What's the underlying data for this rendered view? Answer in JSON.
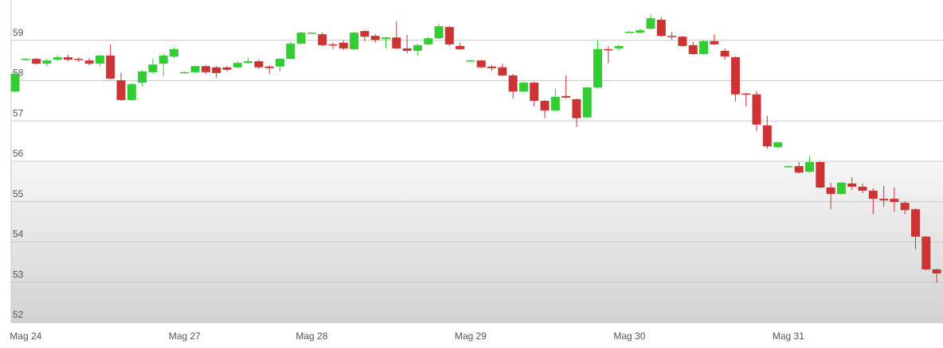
{
  "chart_data": {
    "type": "candlestick",
    "categories": [
      null,
      "Mag 24",
      null,
      null,
      null,
      null,
      null,
      null,
      null,
      null,
      null,
      null,
      null,
      null,
      null,
      null,
      "Mag 27",
      null,
      null,
      null,
      null,
      null,
      null,
      null,
      null,
      null,
      null,
      null,
      "Mag 28",
      null,
      null,
      null,
      null,
      null,
      null,
      null,
      null,
      null,
      null,
      null,
      null,
      null,
      null,
      "Mag 29",
      null,
      null,
      null,
      null,
      null,
      null,
      null,
      null,
      null,
      null,
      null,
      null,
      null,
      null,
      "Mag 30",
      null,
      null,
      null,
      null,
      null,
      null,
      null,
      null,
      null,
      null,
      null,
      null,
      null,
      null,
      "Mag 31",
      null,
      null,
      null,
      null,
      null,
      null,
      null,
      null,
      null,
      null,
      null,
      null,
      null,
      null
    ],
    "open": [
      57.73,
      58.54,
      58.54,
      58.42,
      58.52,
      58.58,
      58.54,
      58.5,
      58.42,
      58.62,
      58.01,
      57.52,
      57.95,
      58.21,
      58.42,
      58.6,
      58.21,
      58.21,
      58.36,
      58.33,
      58.33,
      58.33,
      58.44,
      58.48,
      58.35,
      58.35,
      58.54,
      58.92,
      59.19,
      59.15,
      58.9,
      58.94,
      58.78,
      59.23,
      59.11,
      59.03,
      59.07,
      58.8,
      58.74,
      58.9,
      59.05,
      59.33,
      58.86,
      58.5,
      58.5,
      58.35,
      58.33,
      58.13,
      57.73,
      57.95,
      57.5,
      57.26,
      57.62,
      57.54,
      57.09,
      57.83,
      58.78,
      58.8,
      59.21,
      59.19,
      59.29,
      59.51,
      59.11,
      59.09,
      58.88,
      58.66,
      58.98,
      58.74,
      58.58,
      57.68,
      57.66,
      56.89,
      56.35,
      55.88,
      55.88,
      55.74,
      55.98,
      55.35,
      55.19,
      55.45,
      55.37,
      55.27,
      55.07,
      55.07,
      54.97,
      54.81,
      54.13,
      53.32
    ],
    "high": [
      58.23,
      58.56,
      58.56,
      58.54,
      58.64,
      58.64,
      58.58,
      58.56,
      58.64,
      58.9,
      58.2,
      57.95,
      58.27,
      58.55,
      58.66,
      58.82,
      58.23,
      58.38,
      58.38,
      58.36,
      58.36,
      58.48,
      58.58,
      58.52,
      58.38,
      58.56,
      58.96,
      59.21,
      59.21,
      59.19,
      58.94,
      59.0,
      59.21,
      59.25,
      59.15,
      59.09,
      59.47,
      59.13,
      58.92,
      59.09,
      59.41,
      59.35,
      58.94,
      58.52,
      58.52,
      58.38,
      58.42,
      58.17,
      57.97,
      57.97,
      57.52,
      57.8,
      58.13,
      57.56,
      57.85,
      59.0,
      58.85,
      58.88,
      59.23,
      59.29,
      59.63,
      59.57,
      59.21,
      59.11,
      58.96,
      59.0,
      59.15,
      58.8,
      58.6,
      57.7,
      57.74,
      57.13,
      56.49,
      55.9,
      55.98,
      56.13,
      56.0,
      55.47,
      55.49,
      55.6,
      55.45,
      55.33,
      55.39,
      55.35,
      55.01,
      54.83,
      54.15,
      53.34
    ],
    "low": [
      57.71,
      58.52,
      58.4,
      58.36,
      58.5,
      58.48,
      58.46,
      58.38,
      58.36,
      58.03,
      57.5,
      57.5,
      57.85,
      58.17,
      58.1,
      58.56,
      58.19,
      58.19,
      58.17,
      58.07,
      58.23,
      58.31,
      58.42,
      58.29,
      58.17,
      58.23,
      58.52,
      58.9,
      59.17,
      58.86,
      58.78,
      58.76,
      58.76,
      58.98,
      58.94,
      58.8,
      58.78,
      58.68,
      58.62,
      58.88,
      59.03,
      58.86,
      58.76,
      58.48,
      58.31,
      58.25,
      58.11,
      57.56,
      57.71,
      57.36,
      57.07,
      57.24,
      57.56,
      56.85,
      57.07,
      57.8,
      58.43,
      58.74,
      59.19,
      59.17,
      59.27,
      59.09,
      59.01,
      58.84,
      58.64,
      58.64,
      58.88,
      58.52,
      57.48,
      57.36,
      56.75,
      56.31,
      56.33,
      55.86,
      55.7,
      55.72,
      55.33,
      54.81,
      55.17,
      55.29,
      55.21,
      54.69,
      54.87,
      54.75,
      54.69,
      53.82,
      53.3,
      52.99
    ],
    "close": [
      58.17,
      58.54,
      58.42,
      58.5,
      58.58,
      58.52,
      58.52,
      58.42,
      58.62,
      58.05,
      57.52,
      57.91,
      58.23,
      58.4,
      58.62,
      58.78,
      58.21,
      58.36,
      58.21,
      58.19,
      58.27,
      58.44,
      58.48,
      58.33,
      58.31,
      58.54,
      58.92,
      59.19,
      59.19,
      58.88,
      58.88,
      58.8,
      59.19,
      59.09,
      59.01,
      59.07,
      58.8,
      58.74,
      58.88,
      59.05,
      59.35,
      58.9,
      58.78,
      58.5,
      58.33,
      58.31,
      58.13,
      57.73,
      57.95,
      57.5,
      57.26,
      57.6,
      57.58,
      57.07,
      57.83,
      58.78,
      58.76,
      58.86,
      59.21,
      59.25,
      59.55,
      59.11,
      59.09,
      58.86,
      58.66,
      58.98,
      58.9,
      58.6,
      57.66,
      57.66,
      56.91,
      56.37,
      56.47,
      55.88,
      55.72,
      55.98,
      55.35,
      55.19,
      55.47,
      55.37,
      55.27,
      55.07,
      55.03,
      54.99,
      54.79,
      54.13,
      53.32,
      53.22
    ],
    "up_color": "#33cc33",
    "down_color": "#cc3333",
    "ylim": [
      52,
      60
    ],
    "yticks": [
      52,
      53,
      54,
      55,
      56,
      57,
      58,
      59
    ],
    "grid": true
  }
}
